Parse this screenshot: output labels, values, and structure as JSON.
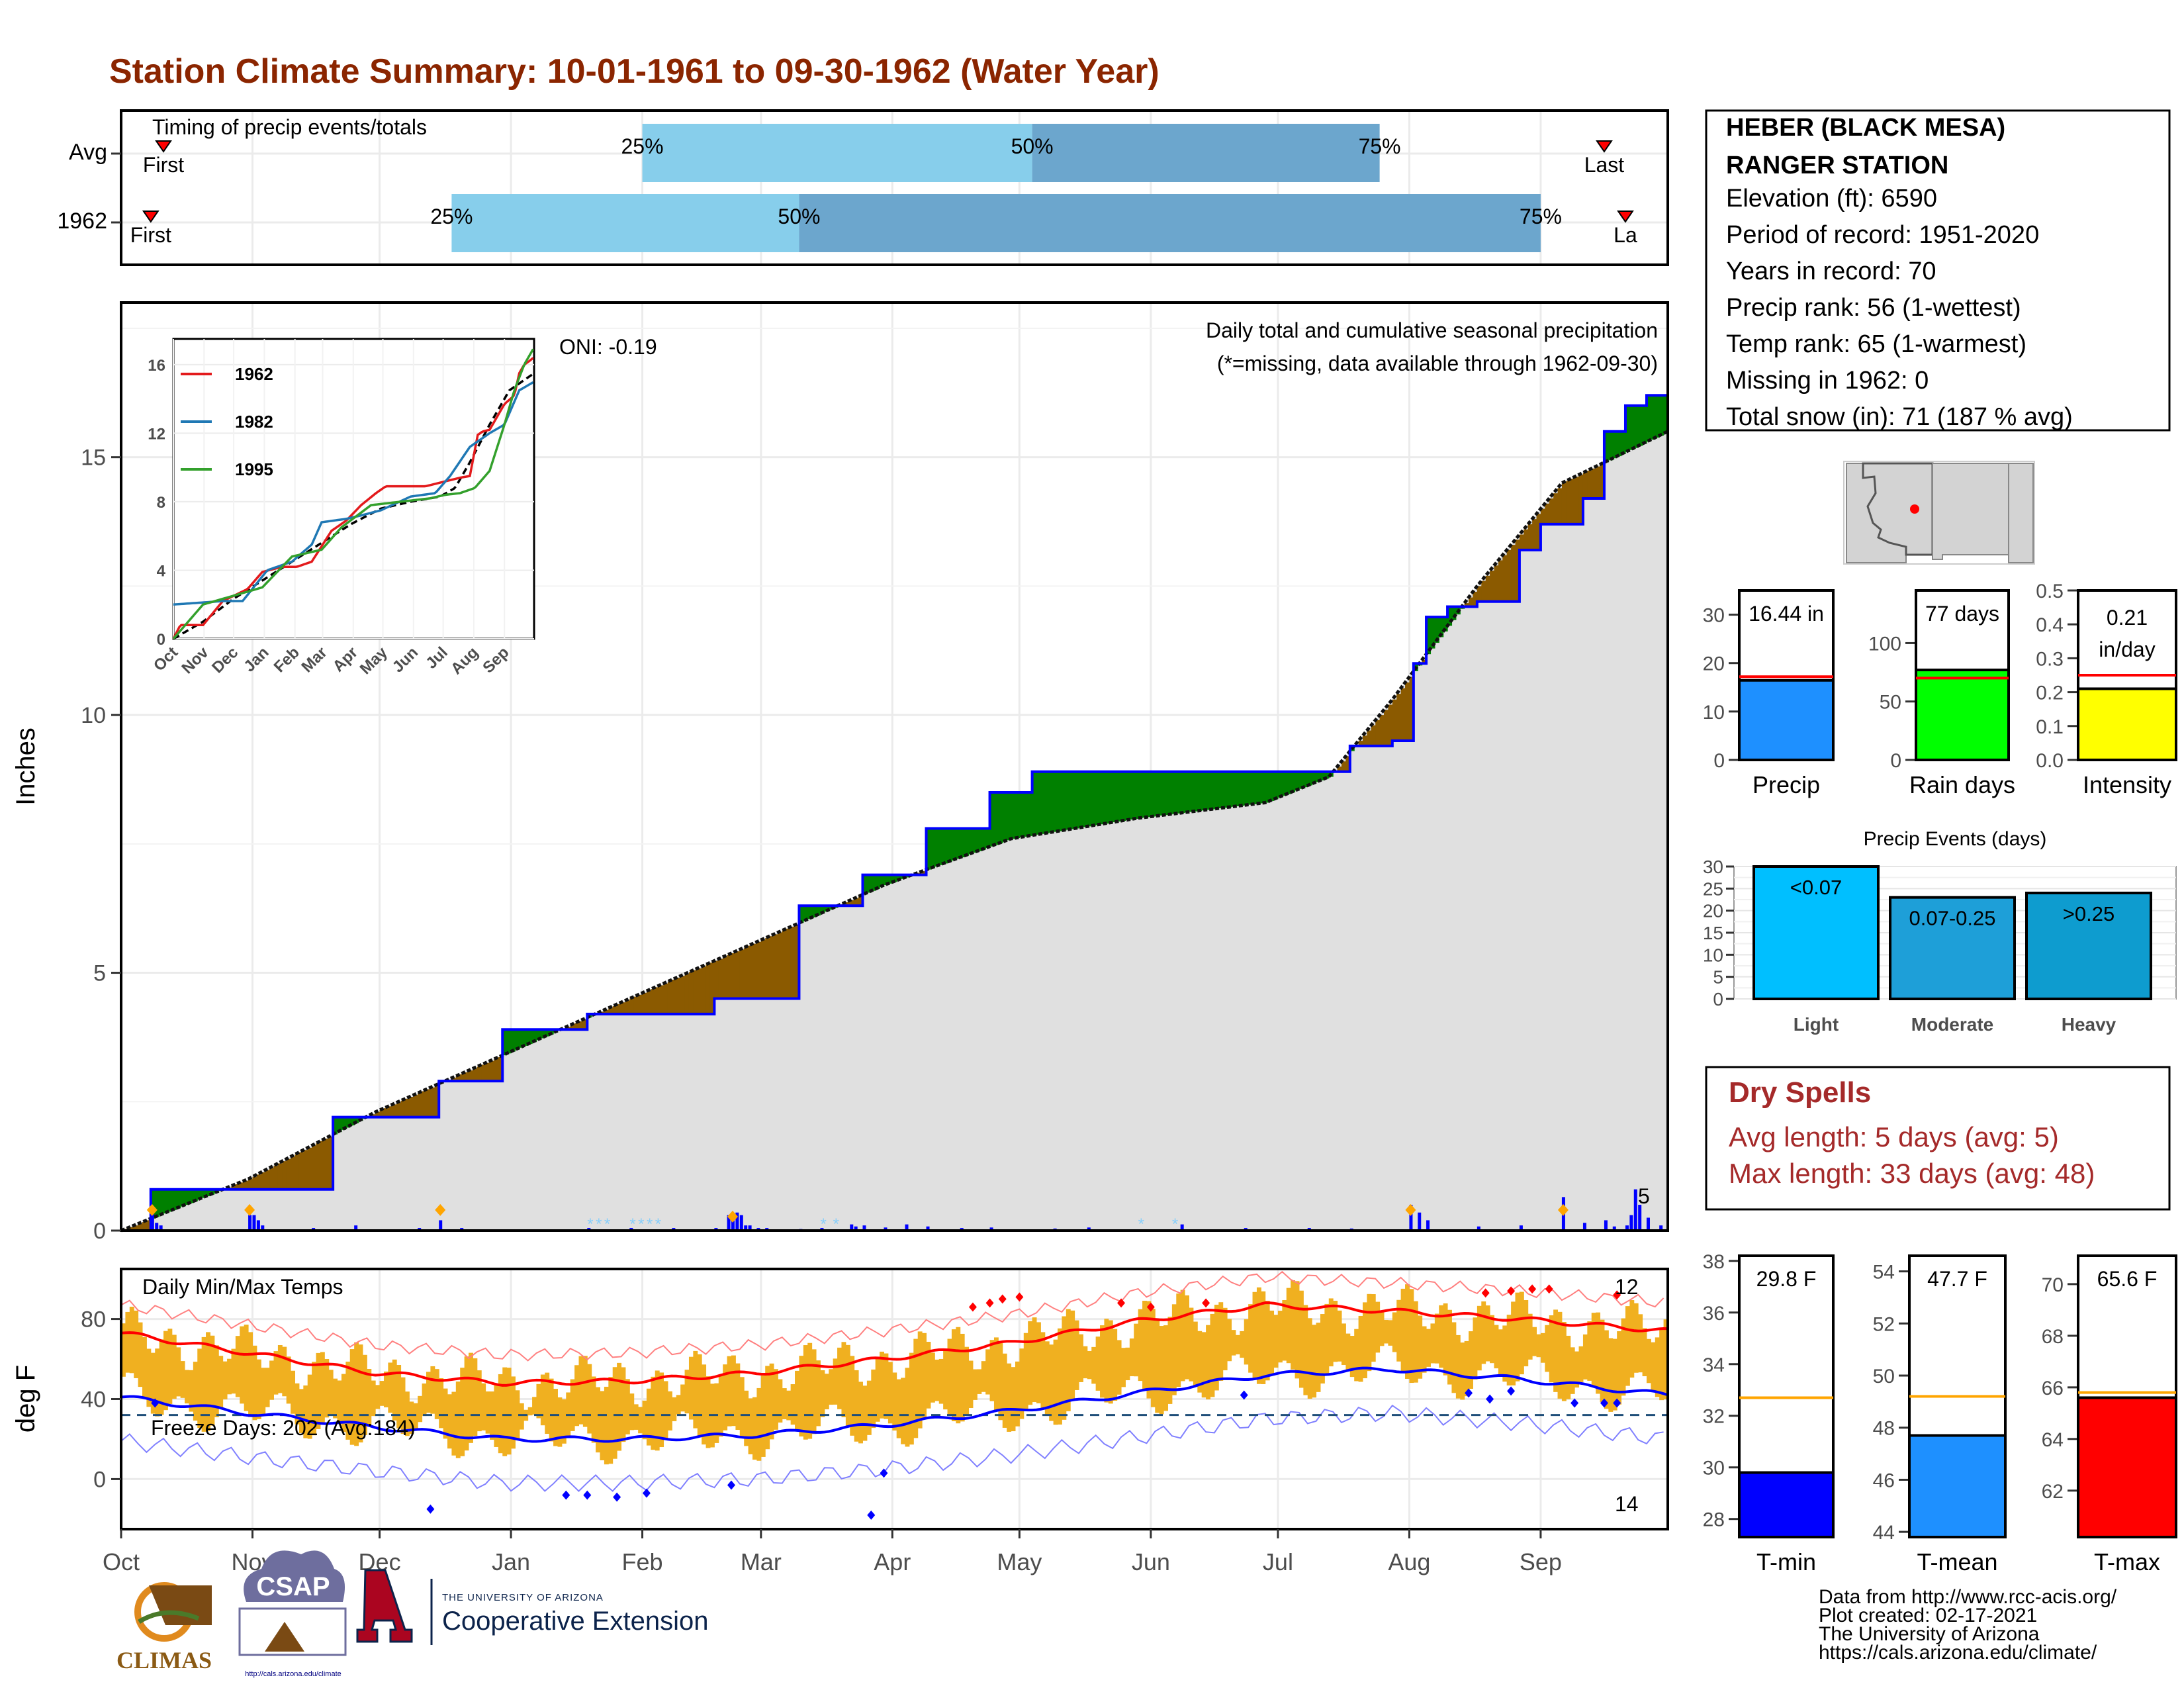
{
  "title": "Station Climate Summary: 10-01-1961 to 09-30-1962 (Water Year)",
  "station": {
    "name_line1": "HEBER (BLACK MESA)",
    "name_line2": "RANGER STATION",
    "elevation": "Elevation (ft): 6590",
    "period": "Period of record: 1951-2020",
    "years": "Years in record: 70",
    "precip_rank": "Precip rank: 56 (1-wettest)",
    "temp_rank": "Temp rank: 65 (1-warmest)",
    "missing": "Missing in 1962: 0",
    "snow": "Total snow (in): 71 (187 % avg)"
  },
  "dry_spells": {
    "title": "Dry Spells",
    "avg": "Avg length: 5 days (avg: 5)",
    "max": "Max length: 33 days (avg: 48)"
  },
  "credits": {
    "line1": "Data from http://www.rcc-acis.org/",
    "line2": "Plot created: 02-17-2021",
    "line3": "The University of Arizona",
    "line4": "https://cals.arizona.edu/climate/"
  },
  "logos": {
    "climas": "CLIMAS",
    "csap": "CSAP",
    "csap_url": "http://cals.arizona.edu/climate",
    "ua_small": "THE UNIVERSITY OF ARIZONA",
    "ua_big": "Cooperative Extension"
  },
  "months": [
    "Oct",
    "Nov",
    "Dec",
    "Jan",
    "Feb",
    "Mar",
    "Apr",
    "May",
    "Jun",
    "Jul",
    "Aug",
    "Sep"
  ],
  "colors": {
    "title": "#8B2500",
    "above_avg": "#008000",
    "below_avg": "#8B5A00",
    "cum_line": "#0000FF",
    "climo_fill": "#E0E0E0",
    "tmax_line": "#FF0000",
    "tmin_line": "#0000FF",
    "temp_bars": "#F0B020",
    "q_light": "#87CEEB",
    "q_dark": "#6CA6CD"
  },
  "timing": {
    "label": "Timing of precip events/totals",
    "rows": [
      {
        "name": "Avg",
        "first_day": 10,
        "q25_day": 123,
        "q50_day": 215,
        "q75_day": 297,
        "last_day": 350,
        "first_label": "First",
        "last_label": "Last",
        "q25_label": "25%",
        "q50_label": "50%",
        "q75_label": "75%"
      },
      {
        "name": "1962",
        "first_day": 7,
        "q25_day": 78,
        "q50_day": 160,
        "q75_day": 335,
        "last_day": 355,
        "first_label": "First",
        "last_label": "La",
        "q25_label": "25%",
        "q50_label": "50%",
        "q75_label": "75%"
      }
    ]
  },
  "precip_panel": {
    "ylabel": "Inches",
    "ymax": 18,
    "yticks": [
      0,
      5,
      10,
      15
    ],
    "oni": "ONI: -0.19",
    "note1": "Daily total and cumulative seasonal precipitation",
    "note2": "(*=missing, data available through 1962-09-30)",
    "count_label": "5"
  },
  "chart_data": [
    {
      "type": "area",
      "name": "cumulative precipitation",
      "x_unit": "day of water year",
      "ylabel": "Inches",
      "cumulative_1962": {
        "x": [
          0,
          7,
          30,
          50,
          75,
          90,
          110,
          125,
          140,
          160,
          175,
          190,
          205,
          215,
          255,
          290,
          300,
          305,
          308,
          313,
          320,
          330,
          335,
          345,
          350,
          355,
          360,
          365
        ],
        "y": [
          0,
          0.8,
          0.8,
          2.2,
          2.9,
          3.9,
          4.2,
          4.2,
          4.5,
          6.3,
          6.9,
          7.8,
          8.5,
          8.9,
          8.9,
          9.4,
          9.5,
          11.0,
          11.9,
          12.1,
          12.2,
          13.2,
          13.7,
          14.2,
          15.5,
          16.0,
          16.2,
          16.44
        ]
      },
      "climo_avg": {
        "x": [
          0,
          30,
          60,
          90,
          120,
          150,
          180,
          210,
          240,
          270,
          285,
          300,
          320,
          340,
          365
        ],
        "y": [
          0,
          1.0,
          2.3,
          3.4,
          4.5,
          5.6,
          6.7,
          7.6,
          8.0,
          8.3,
          8.8,
          10.3,
          12.5,
          14.5,
          15.5
        ]
      },
      "daily_precip": {
        "x": [
          7,
          8,
          9,
          30,
          31,
          32,
          33,
          45,
          55,
          70,
          75,
          80,
          110,
          120,
          125,
          130,
          140,
          143,
          144,
          145,
          146,
          147,
          148,
          150,
          152,
          160,
          165,
          172,
          173,
          175,
          180,
          185,
          190,
          198,
          205,
          220,
          228,
          250,
          265,
          280,
          290,
          304,
          306,
          308,
          320,
          330,
          340,
          345,
          350,
          352,
          355,
          356,
          357,
          358,
          360,
          363
        ],
        "y": [
          0.35,
          0.15,
          0.1,
          0.3,
          0.3,
          0.2,
          0.1,
          0.05,
          0.1,
          0.05,
          0.2,
          0.05,
          0.05,
          0.05,
          0.02,
          0.05,
          0.05,
          0.3,
          0.25,
          0.35,
          0.3,
          0.1,
          0.1,
          0.05,
          0.05,
          0.03,
          0.05,
          0.12,
          0.08,
          0.1,
          0.06,
          0.12,
          0.08,
          0.05,
          0.06,
          0.04,
          0.06,
          0.12,
          0.05,
          0.05,
          0.04,
          0.5,
          0.35,
          0.2,
          0.08,
          0.1,
          0.65,
          0.15,
          0.2,
          0.08,
          0.1,
          0.3,
          0.8,
          0.5,
          0.25,
          0.1
        ]
      }
    },
    {
      "type": "line",
      "name": "Daily Min/Max Temps",
      "ylabel": "deg F",
      "yticks": [
        0,
        40,
        80
      ],
      "ylim": [
        -25,
        105
      ],
      "freeze_line": 32,
      "freeze_label": "Freeze Days: 202 (Avg:184)",
      "label": "Daily Min/Max Temps",
      "record_high_count": "12",
      "record_low_count": "14",
      "avg_tmax": {
        "x": [
          0,
          30,
          60,
          90,
          120,
          150,
          180,
          210,
          240,
          270,
          300,
          330,
          365
        ],
        "y": [
          73,
          63,
          53,
          48,
          49,
          53,
          60,
          68,
          79,
          87,
          84,
          80,
          74
        ]
      },
      "avg_tmin": {
        "x": [
          0,
          30,
          60,
          90,
          120,
          150,
          180,
          210,
          240,
          270,
          300,
          330,
          365
        ],
        "y": [
          41,
          33,
          26,
          20,
          20,
          22,
          27,
          34,
          43,
          52,
          55,
          50,
          42
        ]
      }
    },
    {
      "type": "bar",
      "name": "Precip",
      "categories": [
        "Precip"
      ],
      "values": [
        16.44
      ],
      "avg": 17.2,
      "ylim": [
        0,
        35
      ],
      "yticks": [
        0,
        10,
        20,
        30
      ],
      "label": "16.44 in"
    },
    {
      "type": "bar",
      "name": "Rain days",
      "categories": [
        "Rain days"
      ],
      "values": [
        77
      ],
      "avg": 70,
      "ylim": [
        0,
        145
      ],
      "yticks": [
        0,
        50,
        100
      ],
      "label": "77 days"
    },
    {
      "type": "bar",
      "name": "Intensity",
      "categories": [
        "Intensity"
      ],
      "values": [
        0.21
      ],
      "avg": 0.25,
      "ylim": [
        0,
        0.5
      ],
      "yticks": [
        0.0,
        0.1,
        0.2,
        0.3,
        0.4,
        0.5
      ],
      "label_line1": "0.21",
      "label_line2": "in/day"
    },
    {
      "type": "bar",
      "name": "Precip Events (days)",
      "title": "Precip Events (days)",
      "categories": [
        "Light",
        "Moderate",
        "Heavy"
      ],
      "values": [
        30,
        23,
        24
      ],
      "bar_labels": [
        "<0.07",
        "0.07-0.25",
        ">0.25"
      ],
      "ylim": [
        0,
        30
      ],
      "yticks": [
        0,
        5,
        10,
        15,
        20,
        25,
        30
      ]
    },
    {
      "type": "bar",
      "name": "T-min",
      "categories": [
        "T-min"
      ],
      "values": [
        29.8
      ],
      "avg": 32.7,
      "ylim": [
        27.3,
        38.2
      ],
      "yticks": [
        28,
        30,
        32,
        34,
        36,
        38
      ],
      "label": "29.8 F"
    },
    {
      "type": "bar",
      "name": "T-mean",
      "categories": [
        "T-mean"
      ],
      "values": [
        47.7
      ],
      "avg": 49.2,
      "ylim": [
        43.8,
        54.6
      ],
      "yticks": [
        44,
        46,
        48,
        50,
        52,
        54
      ],
      "label": "47.7 F"
    },
    {
      "type": "bar",
      "name": "T-max",
      "categories": [
        "T-max"
      ],
      "values": [
        65.6
      ],
      "avg": 65.8,
      "ylim": [
        60.2,
        71.1
      ],
      "yticks": [
        62,
        64,
        66,
        68,
        70
      ],
      "label": "65.6 F"
    }
  ],
  "inset": {
    "series": [
      {
        "name": "1962",
        "color": "#E31A1C"
      },
      {
        "name": "1982",
        "color": "#1F78B4"
      },
      {
        "name": "1995",
        "color": "#33A02C"
      }
    ],
    "yticks": [
      0,
      4,
      8,
      12,
      16
    ],
    "xticks": [
      "Oct",
      "Nov",
      "Dec",
      "Jan",
      "Feb",
      "Mar",
      "Apr",
      "May",
      "Jun",
      "Jul",
      "Aug",
      "Sep"
    ]
  }
}
